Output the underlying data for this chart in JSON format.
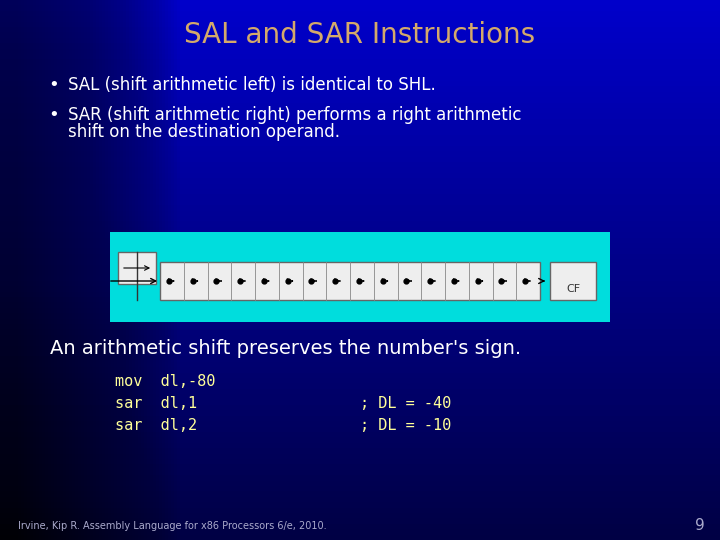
{
  "title": "SAL and SAR Instructions",
  "title_color": "#D4A96A",
  "bg_color_top": "#0000CC",
  "bg_color_bottom": "#000044",
  "bullet1": "SAL (shift arithmetic left) is identical to SHL.",
  "bullet2a": "SAR (shift arithmetic right) performs a right arithmetic",
  "bullet2b": "shift on the destination operand.",
  "bullet_color": "#FFFFFF",
  "highlight_text": "An arithmetic shift preserves the number's sign.",
  "highlight_color": "#FFFFFF",
  "code_line1": "mov  dl,-80",
  "code_line2": "sar  dl,1",
  "code_line3": "sar  dl,2",
  "comment2": "; DL = -40",
  "comment3": "; DL = -10",
  "code_color": "#FFFF99",
  "footer": "Irvine, Kip R. Assembly Language for x86 Processors 6/e, 2010.",
  "footer_color": "#AAAACC",
  "page_num": "9",
  "diagram_bg": "#00DDDD",
  "diagram_box_fill": "#EEEEEE",
  "cf_box_fill": "#EEEEEE",
  "n_cells": 16
}
